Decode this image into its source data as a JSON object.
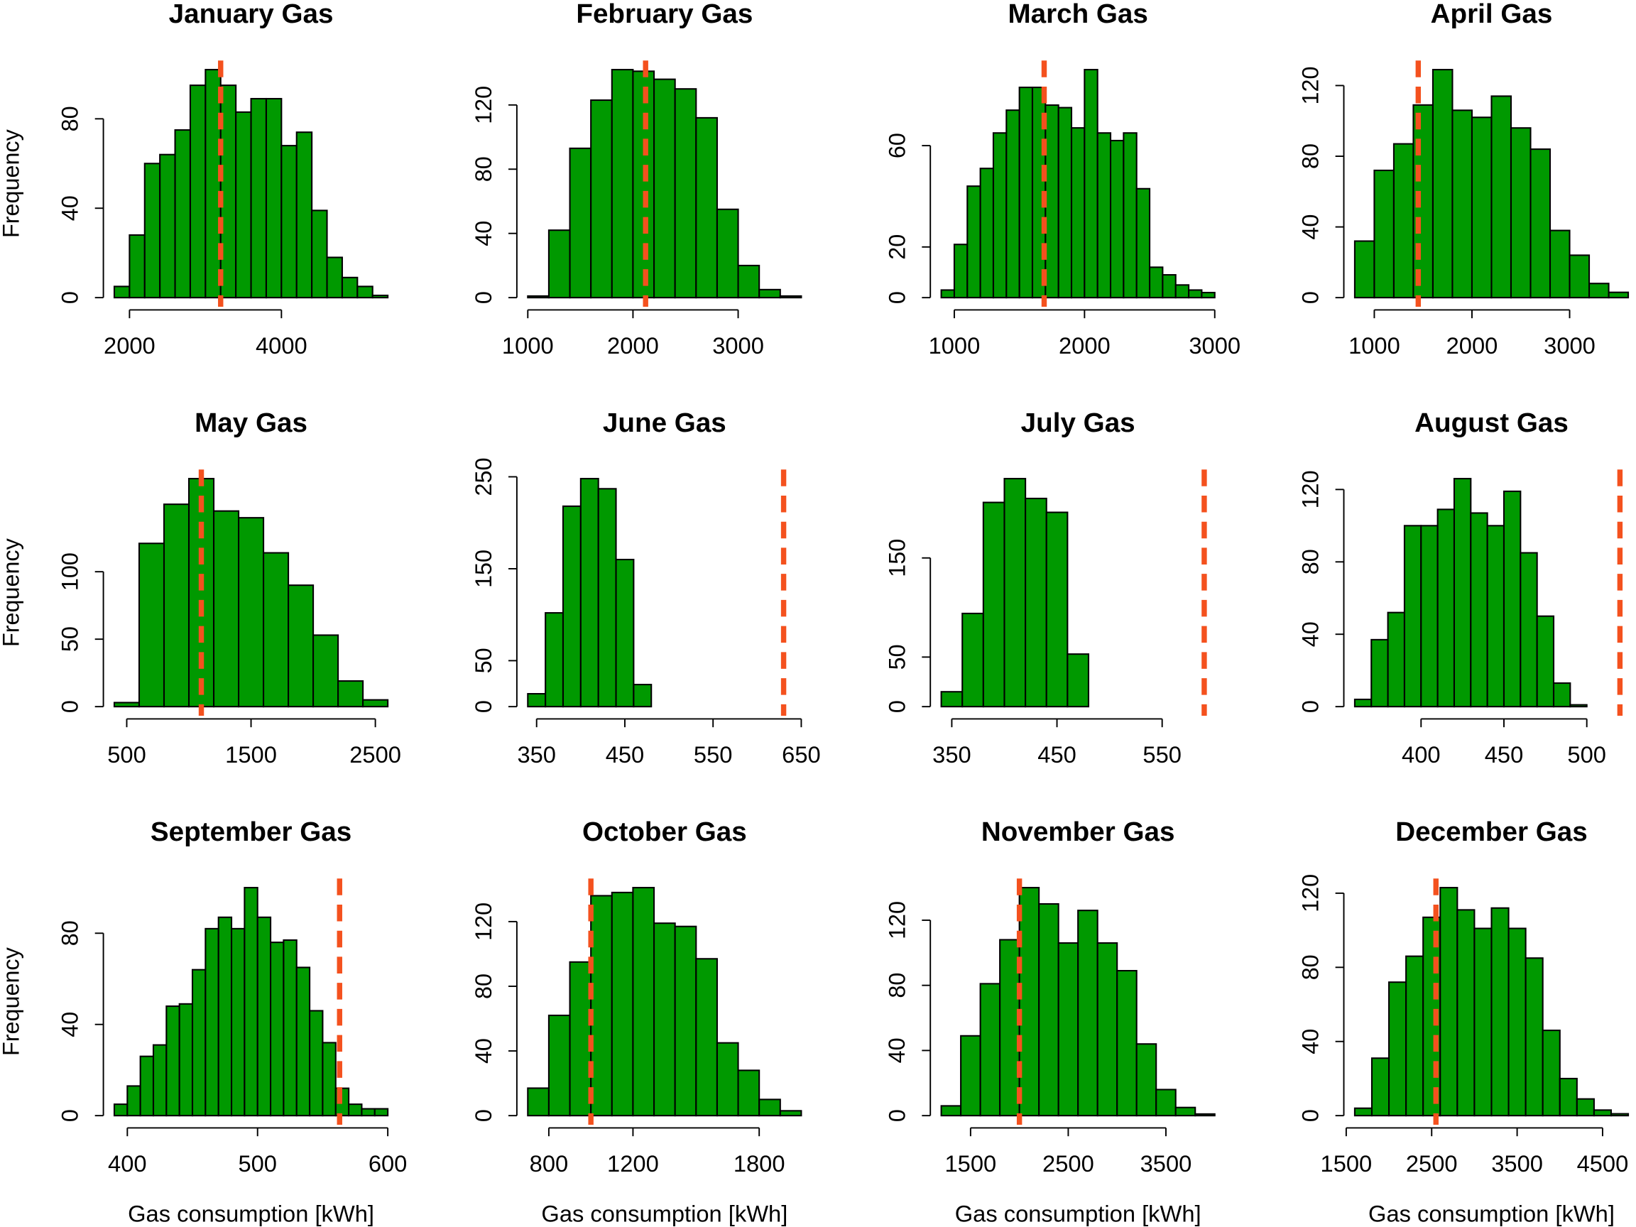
{
  "chart_data": [
    {
      "type": "histogram",
      "title": "January Gas",
      "ylabel": "Frequency",
      "color": "#009900",
      "vline": 3200,
      "vline_color": "#F4511E",
      "bins": [
        1800,
        2000,
        2200,
        2400,
        2600,
        2800,
        3000,
        3200,
        3400,
        3600,
        3800,
        4000,
        4200,
        4400,
        4600,
        4800,
        5000,
        5200,
        5400
      ],
      "values": [
        5,
        28,
        60,
        64,
        75,
        95,
        102,
        95,
        83,
        89,
        89,
        68,
        74,
        39,
        18,
        9,
        5,
        1
      ],
      "xlim": [
        1800,
        5400
      ],
      "ylim": [
        0,
        102
      ],
      "xticks": [
        2000,
        4000
      ],
      "yticks": [
        0,
        40,
        80
      ]
    },
    {
      "type": "histogram",
      "title": "February Gas",
      "color": "#009900",
      "vline": 2120,
      "vline_color": "#F4511E",
      "bins": [
        1000,
        1200,
        1400,
        1600,
        1800,
        2000,
        2200,
        2400,
        2600,
        2800,
        3000,
        3200,
        3400,
        3600
      ],
      "values": [
        1,
        42,
        93,
        123,
        142,
        141,
        136,
        130,
        112,
        55,
        20,
        5,
        1
      ],
      "xlim": [
        1000,
        3600
      ],
      "ylim": [
        0,
        142
      ],
      "xticks": [
        1000,
        2000,
        3000
      ],
      "yticks": [
        0,
        40,
        80,
        120
      ]
    },
    {
      "type": "histogram",
      "title": "March Gas",
      "color": "#009900",
      "vline": 1690,
      "vline_color": "#F4511E",
      "bins": [
        900,
        1000,
        1100,
        1200,
        1300,
        1400,
        1500,
        1600,
        1700,
        1800,
        1900,
        2000,
        2100,
        2200,
        2300,
        2400,
        2500,
        2600,
        2700,
        2800,
        2900,
        3000
      ],
      "values": [
        3,
        21,
        44,
        51,
        65,
        74,
        83,
        83,
        76,
        75,
        67,
        90,
        65,
        62,
        65,
        43,
        12,
        9,
        5,
        3,
        2
      ],
      "xlim": [
        900,
        3000
      ],
      "ylim": [
        0,
        90
      ],
      "xticks": [
        1000,
        2000,
        3000
      ],
      "yticks": [
        0,
        20,
        60
      ]
    },
    {
      "type": "histogram",
      "title": "April Gas",
      "color": "#009900",
      "vline": 1450,
      "vline_color": "#F4511E",
      "bins": [
        800,
        1000,
        1200,
        1400,
        1600,
        1800,
        2000,
        2200,
        2400,
        2600,
        2800,
        3000,
        3200,
        3400,
        3600
      ],
      "values": [
        32,
        72,
        87,
        109,
        129,
        106,
        102,
        114,
        96,
        84,
        38,
        24,
        8,
        3
      ],
      "xlim": [
        800,
        3600
      ],
      "ylim": [
        0,
        129
      ],
      "xticks": [
        1000,
        2000,
        3000
      ],
      "yticks": [
        0,
        40,
        80,
        120
      ]
    },
    {
      "type": "histogram",
      "title": "May Gas",
      "ylabel": "Frequency",
      "color": "#009900",
      "vline": 1100,
      "vline_color": "#F4511E",
      "bins": [
        400,
        600,
        800,
        1000,
        1200,
        1400,
        1600,
        1800,
        2000,
        2200,
        2400,
        2600
      ],
      "values": [
        3,
        121,
        150,
        169,
        145,
        140,
        114,
        90,
        53,
        19,
        5
      ],
      "xlim": [
        400,
        2600
      ],
      "ylim": [
        0,
        169
      ],
      "xticks": [
        500,
        1500,
        2500
      ],
      "yticks": [
        0,
        50,
        100
      ]
    },
    {
      "type": "histogram",
      "title": "June Gas",
      "color": "#009900",
      "vline": 630,
      "vline_color": "#F4511E",
      "bins": [
        340,
        360,
        380,
        400,
        420,
        440,
        460,
        480
      ],
      "values": [
        14,
        102,
        218,
        248,
        237,
        160,
        24
      ],
      "xlim": [
        340,
        650
      ],
      "ylim": [
        0,
        248
      ],
      "xticks": [
        350,
        450,
        550,
        650
      ],
      "yticks": [
        0,
        50,
        150,
        250
      ]
    },
    {
      "type": "histogram",
      "title": "July Gas",
      "color": "#009900",
      "vline": 590,
      "vline_color": "#F4511E",
      "bins": [
        340,
        360,
        380,
        400,
        420,
        440,
        460,
        480
      ],
      "values": [
        15,
        94,
        206,
        230,
        210,
        196,
        53
      ],
      "xlim": [
        340,
        600
      ],
      "ylim": [
        0,
        230
      ],
      "xticks": [
        350,
        450,
        550
      ],
      "yticks": [
        0,
        50,
        150
      ]
    },
    {
      "type": "histogram",
      "title": "August Gas",
      "color": "#009900",
      "vline": 520,
      "vline_color": "#F4511E",
      "bins": [
        360,
        370,
        380,
        390,
        400,
        410,
        420,
        430,
        440,
        450,
        460,
        470,
        480,
        490,
        500
      ],
      "values": [
        4,
        37,
        52,
        100,
        100,
        109,
        126,
        107,
        100,
        119,
        85,
        50,
        13,
        1
      ],
      "xlim": [
        360,
        525
      ],
      "ylim": [
        0,
        126
      ],
      "xticks": [
        400,
        450,
        500
      ],
      "yticks": [
        0,
        40,
        80,
        120
      ]
    },
    {
      "type": "histogram",
      "title": "September Gas",
      "ylabel": "Frequency",
      "xlabel": "Gas consumption [kWh]",
      "color": "#009900",
      "vline": 563,
      "vline_color": "#F4511E",
      "bins": [
        390,
        400,
        410,
        420,
        430,
        440,
        450,
        460,
        470,
        480,
        490,
        500,
        510,
        520,
        530,
        540,
        550,
        560,
        570,
        580,
        590,
        600
      ],
      "values": [
        5,
        13,
        26,
        31,
        48,
        49,
        64,
        82,
        87,
        82,
        100,
        87,
        76,
        77,
        65,
        46,
        32,
        12,
        5,
        3,
        3
      ],
      "xlim": [
        390,
        600
      ],
      "ylim": [
        0,
        100
      ],
      "xticks": [
        400,
        500,
        600
      ],
      "yticks": [
        0,
        40,
        80
      ]
    },
    {
      "type": "histogram",
      "title": "October Gas",
      "xlabel": "Gas consumption [kWh]",
      "color": "#009900",
      "vline": 1000,
      "vline_color": "#F4511E",
      "bins": [
        700,
        800,
        900,
        1000,
        1100,
        1200,
        1300,
        1400,
        1500,
        1600,
        1700,
        1800,
        1900,
        2000
      ],
      "values": [
        17,
        62,
        95,
        136,
        138,
        141,
        119,
        117,
        97,
        45,
        28,
        10,
        3
      ],
      "xlim": [
        700,
        2000
      ],
      "ylim": [
        0,
        141
      ],
      "xticks": [
        800,
        1200,
        1800
      ],
      "yticks": [
        0,
        40,
        80,
        120
      ]
    },
    {
      "type": "histogram",
      "title": "November Gas",
      "xlabel": "Gas consumption [kWh]",
      "color": "#009900",
      "vline": 2000,
      "vline_color": "#F4511E",
      "bins": [
        1200,
        1400,
        1600,
        1800,
        2000,
        2200,
        2400,
        2600,
        2800,
        3000,
        3200,
        3400,
        3600,
        3800,
        4000
      ],
      "values": [
        6,
        49,
        81,
        108,
        140,
        130,
        106,
        126,
        106,
        89,
        44,
        16,
        5,
        1
      ],
      "xlim": [
        1200,
        4000
      ],
      "ylim": [
        0,
        140
      ],
      "xticks": [
        1500,
        2500,
        3500
      ],
      "yticks": [
        0,
        40,
        80,
        120
      ]
    },
    {
      "type": "histogram",
      "title": "December Gas",
      "xlabel": "Gas consumption [kWh]",
      "color": "#009900",
      "vline": 2550,
      "vline_color": "#F4511E",
      "bins": [
        1600,
        1800,
        2000,
        2200,
        2400,
        2600,
        2800,
        3000,
        3200,
        3400,
        3600,
        3800,
        4000,
        4200,
        4400,
        4600,
        4800
      ],
      "values": [
        4,
        31,
        72,
        86,
        107,
        123,
        111,
        101,
        112,
        101,
        85,
        46,
        20,
        9,
        3,
        1
      ],
      "xlim": [
        1600,
        4800
      ],
      "ylim": [
        0,
        123
      ],
      "xticks": [
        1500,
        2500,
        3500,
        4500
      ],
      "yticks": [
        0,
        40,
        80,
        120
      ]
    }
  ]
}
